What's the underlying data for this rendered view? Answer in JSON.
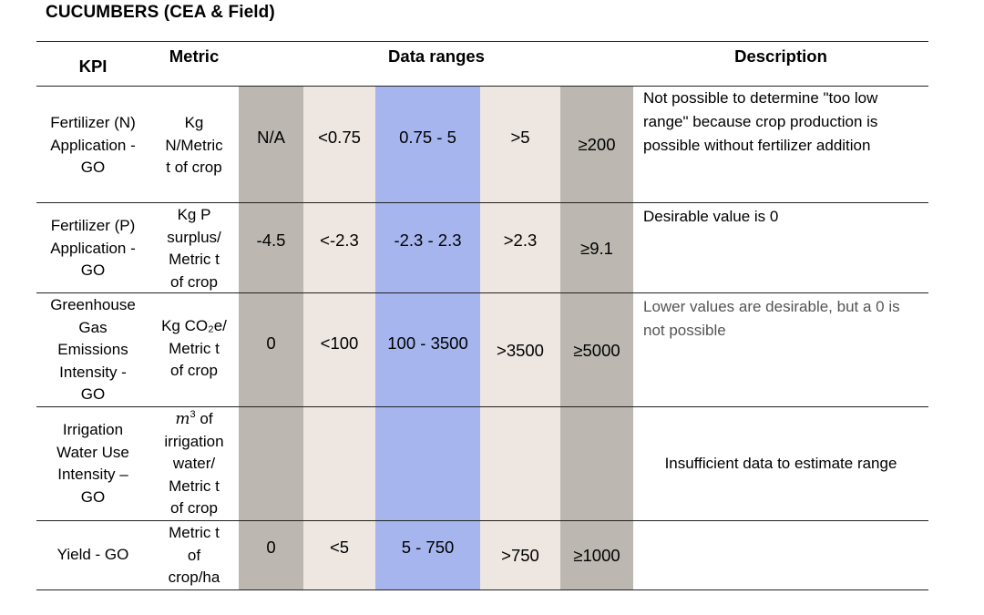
{
  "title": "CUCUMBERS (CEA & Field)",
  "colors": {
    "dark_band": "#bcb8b1",
    "light_band": "#ede6e1",
    "blue_band": "#a6b5ee",
    "text": "#000000",
    "desc_grey": "#555555"
  },
  "headers": {
    "kpi": "KPI",
    "metric": "Metric",
    "ranges": "Data ranges",
    "description": "Description"
  },
  "rows": [
    {
      "kpi": [
        "Fertilizer (N)",
        "Application -",
        "GO"
      ],
      "metric": [
        "Kg",
        "N/Metric",
        "t of crop"
      ],
      "ranges": [
        "N/A",
        "<0.75",
        "0.75 - 5",
        ">5",
        "≥200"
      ],
      "description": [
        "Not possible to determine \"too low",
        "range\" because crop production is",
        "possible without fertilizer addition"
      ]
    },
    {
      "kpi": [
        "Fertilizer (P)",
        "Application -",
        "GO"
      ],
      "metric": [
        "Kg P",
        "surplus/",
        "Metric t",
        "of crop"
      ],
      "ranges": [
        "-4.5",
        "<-2.3",
        "-2.3 - 2.3",
        ">2.3",
        "≥9.1"
      ],
      "description": [
        "Desirable value is 0"
      ]
    },
    {
      "kpi": [
        "Greenhouse",
        "Gas",
        "Emissions",
        "Intensity -",
        "GO"
      ],
      "metric": [
        "Kg CO₂e/",
        "Metric t",
        "of crop"
      ],
      "ranges": [
        "0",
        "<100",
        "100 - 3500",
        ">3500",
        "≥5000"
      ],
      "description": [
        "Lower values are desirable, but a 0 is",
        "not possible"
      ]
    },
    {
      "kpi": [
        "Irrigation",
        "Water Use",
        "Intensity –",
        "GO"
      ],
      "metric_math_base": "m",
      "metric_math_exp": "3",
      "metric_math_suffix": " of",
      "metric": [
        "irrigation",
        "water/",
        "Metric t",
        "of crop"
      ],
      "ranges": [
        "",
        "",
        "",
        "",
        ""
      ],
      "description": [
        "Insufficient data to estimate range"
      ]
    },
    {
      "kpi": [
        "Yield - GO"
      ],
      "metric": [
        "Metric t",
        "of",
        "crop/ha"
      ],
      "ranges": [
        "0",
        "<5",
        "5 - 750",
        ">750",
        "≥1000"
      ],
      "description": []
    }
  ]
}
